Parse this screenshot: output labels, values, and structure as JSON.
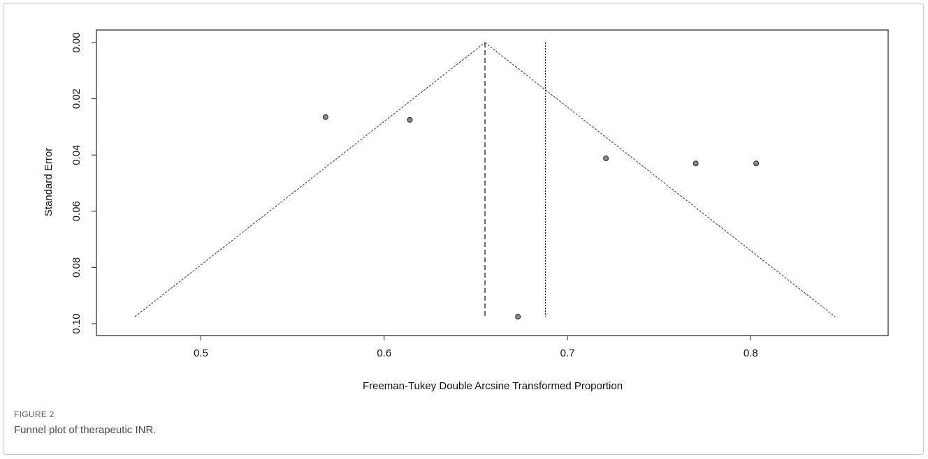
{
  "figure": {
    "label": "FIGURE 2",
    "caption": "Funnel plot of therapeutic INR."
  },
  "chart_data": {
    "type": "scatter",
    "xlabel": "Freeman-Tukey Double Arcsine Transformed Proportion",
    "ylabel": "Standard Error",
    "xlim": [
      0.443,
      0.875
    ],
    "ylim": [
      0.0,
      0.1
    ],
    "y_reversed": true,
    "xticks": [
      "0.5",
      "0.6",
      "0.7",
      "0.8"
    ],
    "yticks": [
      "0.00",
      "0.02",
      "0.04",
      "0.06",
      "0.08",
      "0.10"
    ],
    "grid": false,
    "points": [
      {
        "x": 0.568,
        "y": 0.0265
      },
      {
        "x": 0.614,
        "y": 0.0275
      },
      {
        "x": 0.721,
        "y": 0.0412
      },
      {
        "x": 0.77,
        "y": 0.043
      },
      {
        "x": 0.803,
        "y": 0.043
      },
      {
        "x": 0.673,
        "y": 0.0975
      }
    ],
    "summary_estimate": 0.655,
    "fixed_effect_line": 0.688,
    "funnel": {
      "apex": {
        "x": 0.655,
        "y": 0.0
      },
      "left_bottom": {
        "x": 0.464,
        "y": 0.0975
      },
      "right_bottom": {
        "x": 0.846,
        "y": 0.0975
      }
    }
  }
}
